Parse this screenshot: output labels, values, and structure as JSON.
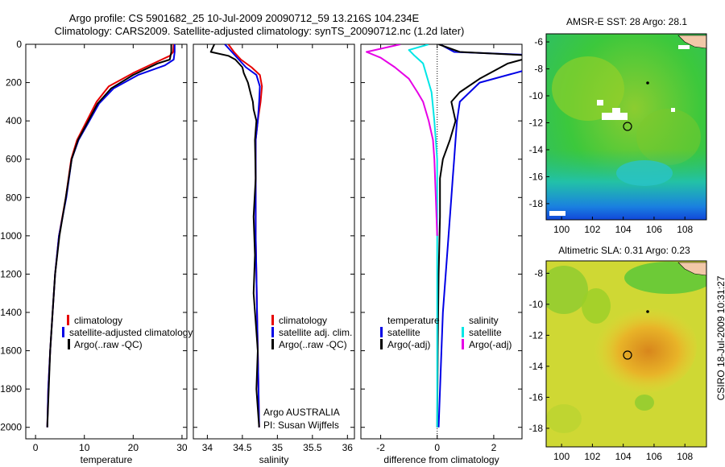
{
  "title_line1": "Argo profile: CS 5901682_25 10-Jul-2009 20090712_59 13.216S 104.234E",
  "title_line2": "Climatology: CARS2009. Satellite-adjusted climatology: synTS_20090712.nc (1.2d later)",
  "side_label": "CSIRO 18-Jul-2009 10:31:27",
  "colors": {
    "red": "#e60000",
    "blue": "#0000e6",
    "black": "#000000",
    "cyan": "#00e6e6",
    "magenta": "#e600e6"
  },
  "chart_data": [
    {
      "type": "line",
      "xlabel": "temperature",
      "xlim": [
        -2,
        31
      ],
      "ylim": [
        2060,
        0
      ],
      "ylabel": "",
      "xticks": [
        "0",
        "10",
        "20",
        "30"
      ],
      "yticks": [
        "0",
        "200",
        "400",
        "600",
        "800",
        "1000",
        "1200",
        "1400",
        "1600",
        "1800",
        "2000"
      ],
      "legend": [
        "climatology",
        "satellite-adjusted climatology",
        "Argo(..raw -QC)"
      ],
      "series": [
        {
          "name": "climatology",
          "color": "red",
          "x": [
            28.3,
            28.2,
            27.5,
            25,
            20,
            15,
            12.5,
            10.5,
            8.5,
            7.3,
            6.2,
            4.8,
            4,
            3.5,
            3,
            2.6,
            2.4
          ],
          "y": [
            0,
            40,
            60,
            90,
            150,
            220,
            300,
            400,
            500,
            600,
            800,
            1000,
            1200,
            1400,
            1600,
            1800,
            2000
          ]
        },
        {
          "name": "satellite-adjusted climatology",
          "color": "blue",
          "x": [
            28.5,
            28.5,
            28.3,
            26.5,
            21,
            16,
            13,
            10.8,
            8.8,
            7.4,
            6.3,
            4.8,
            4,
            3.5,
            3,
            2.6,
            2.4
          ],
          "y": [
            0,
            40,
            80,
            110,
            160,
            230,
            310,
            410,
            500,
            600,
            800,
            1000,
            1200,
            1400,
            1600,
            1800,
            2000
          ]
        },
        {
          "name": "Argo(..raw -QC)",
          "color": "black",
          "x": [
            27.8,
            27.8,
            27.5,
            25,
            20,
            15.5,
            12.7,
            10.6,
            8.7,
            7.4,
            6.2,
            4.9,
            4,
            3.5,
            3,
            2.7,
            2.4
          ],
          "y": [
            0,
            40,
            80,
            100,
            160,
            230,
            310,
            410,
            500,
            600,
            800,
            1000,
            1200,
            1400,
            1600,
            1800,
            2000
          ]
        }
      ]
    },
    {
      "type": "line",
      "xlabel": "salinity",
      "xlim": [
        33.8,
        36.1
      ],
      "ylim": [
        2060,
        0
      ],
      "ylabel": "",
      "xticks": [
        "34",
        "34.5",
        "35",
        "35.5",
        "36"
      ],
      "legend": [
        "climatology",
        "satellite adj. clim.",
        "Argo(..raw -QC)"
      ],
      "annotation": [
        "Argo AUSTRALIA",
        "PI: Susan Wijffels"
      ],
      "series": [
        {
          "name": "climatology",
          "color": "red",
          "x": [
            34.3,
            34.38,
            34.48,
            34.63,
            34.75,
            34.78,
            34.76,
            34.72,
            34.69,
            34.69,
            34.69,
            34.7,
            34.71,
            34.72,
            34.73,
            34.74
          ],
          "y": [
            0,
            40,
            80,
            120,
            160,
            220,
            300,
            400,
            500,
            700,
            1000,
            1200,
            1400,
            1600,
            1800,
            2000
          ]
        },
        {
          "name": "satellite adj. clim.",
          "color": "blue",
          "x": [
            34.25,
            34.35,
            34.45,
            34.55,
            34.7,
            34.75,
            34.74,
            34.72,
            34.69,
            34.69,
            34.69,
            34.7,
            34.71,
            34.72,
            34.73,
            34.74
          ],
          "y": [
            0,
            40,
            80,
            120,
            160,
            220,
            300,
            400,
            500,
            700,
            1000,
            1200,
            1400,
            1600,
            1800,
            2000
          ]
        },
        {
          "name": "Argo(..raw -QC)",
          "color": "black",
          "x": [
            34.1,
            34.05,
            34.3,
            34.4,
            34.5,
            34.52,
            34.58,
            34.62,
            34.65,
            34.66,
            34.7,
            34.68,
            34.69,
            34.66,
            34.68,
            34.66,
            34.7,
            34.72,
            34.7,
            34.72,
            34.74
          ],
          "y": [
            0,
            40,
            60,
            80,
            120,
            150,
            200,
            260,
            300,
            340,
            400,
            500,
            700,
            900,
            1100,
            1300,
            1500,
            1600,
            1800,
            1900,
            2000
          ]
        }
      ]
    },
    {
      "type": "line",
      "xlabel": "difference from climatology",
      "xlim": [
        -2.7,
        3.0
      ],
      "ylim": [
        2060,
        0
      ],
      "ylabel": "",
      "xticks": [
        "-2",
        "0",
        "2"
      ],
      "legend_temperature": [
        "temperature",
        "satellite",
        "Argo(-adj)"
      ],
      "legend_salinity": [
        "salinity",
        "satellite",
        "Argo(-adj)"
      ],
      "series": [
        {
          "name": "satellite",
          "color": "blue",
          "x": [
            0.1,
            0.6,
            4.0,
            4.0,
            1.5,
            0.8,
            0.7,
            0.65,
            0.6,
            0.55,
            0.5,
            0.4,
            0.3,
            0.2,
            0.15,
            0.05
          ],
          "y": [
            0,
            40,
            60,
            100,
            200,
            300,
            400,
            500,
            600,
            700,
            800,
            1000,
            1200,
            1400,
            1600,
            2000
          ]
        },
        {
          "name": "Argo(-adj)",
          "color": "black",
          "x": [
            0.05,
            0.8,
            3.5,
            2.5,
            1.5,
            0.8,
            0.5,
            0.65,
            0.45,
            0.2,
            0.1,
            0.1,
            0.05,
            0.02,
            0.0
          ],
          "y": [
            0,
            40,
            60,
            100,
            180,
            250,
            300,
            400,
            500,
            600,
            700,
            900,
            1200,
            1600,
            2000
          ]
        },
        {
          "name": "satellite",
          "color": "cyan",
          "x": [
            -0.3,
            -1.0,
            -0.8,
            -0.5,
            -0.4,
            -0.2,
            -0.1,
            0.0,
            0.0,
            0.0,
            0.0
          ],
          "y": [
            0,
            30,
            60,
            100,
            150,
            250,
            400,
            600,
            1000,
            1600,
            2000
          ]
        },
        {
          "name": "Argo(-adj)",
          "color": "magenta",
          "x": [
            -1.3,
            -2.5,
            -2.0,
            -1.5,
            -1.0,
            -0.7,
            -0.5,
            -0.3,
            -0.15,
            -0.1,
            -0.05,
            0.0
          ],
          "y": [
            0,
            40,
            70,
            120,
            180,
            250,
            300,
            400,
            500,
            600,
            800,
            1000
          ]
        }
      ]
    },
    {
      "type": "heatmap",
      "title": "AMSR-E SST: 28 Argo: 28.1",
      "xticks": [
        "100",
        "102",
        "104",
        "106",
        "108"
      ],
      "yticks": [
        "-6",
        "-8",
        "-10",
        "-12",
        "-14",
        "-16",
        "-18"
      ],
      "xlim": [
        99,
        109.4
      ],
      "ylim": [
        -19.2,
        -5.4
      ]
    },
    {
      "type": "heatmap",
      "title": "Altimetric SLA: 0.31 Argo: 0.23",
      "xticks": [
        "100",
        "102",
        "104",
        "106",
        "108"
      ],
      "yticks": [
        "-8",
        "-10",
        "-12",
        "-14",
        "-16",
        "-18"
      ],
      "xlim": [
        99,
        109.4
      ],
      "ylim": [
        -19.2,
        -7.2
      ]
    }
  ]
}
